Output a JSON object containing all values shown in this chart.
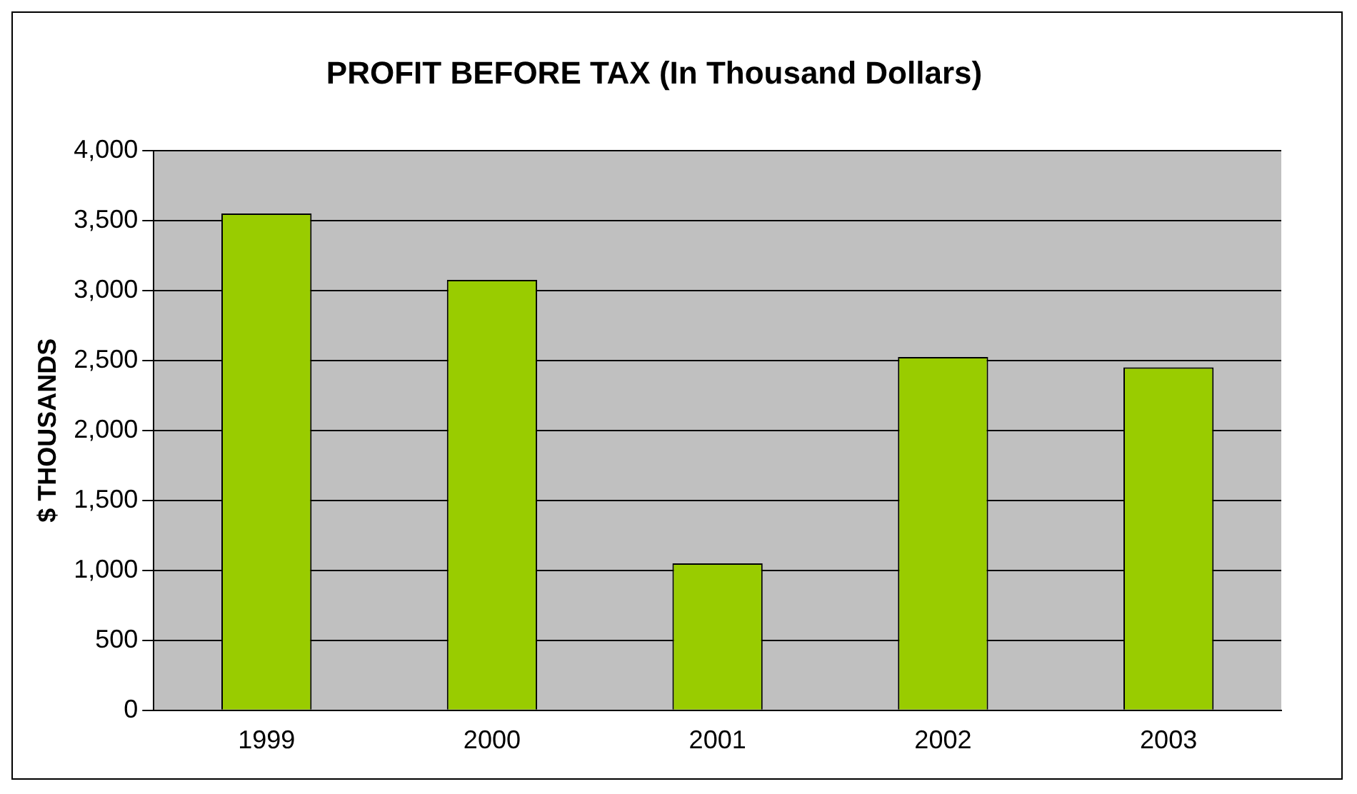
{
  "chart_data": {
    "type": "bar",
    "title": "PROFIT BEFORE TAX (In Thousand Dollars)",
    "ylabel": "$ THOUSANDS",
    "categories": [
      "1999",
      "2000",
      "2001",
      "2002",
      "2003"
    ],
    "values": [
      3550,
      3075,
      1050,
      2525,
      2450
    ],
    "color": "#99cc00",
    "ylim": [
      0,
      4000
    ],
    "yticks": [
      0,
      500,
      {
        "value": 1000,
        "label": "1,000"
      },
      {
        "value": 1500,
        "label": "1,500"
      },
      {
        "value": 2000,
        "label": "2,000"
      },
      {
        "value": 2500,
        "label": "2,500"
      },
      {
        "value": 3000,
        "label": "3,000"
      },
      {
        "value": 3500,
        "label": "3,500"
      },
      {
        "value": 4000,
        "label": "4,000"
      }
    ],
    "grid": "y",
    "legend": false
  }
}
